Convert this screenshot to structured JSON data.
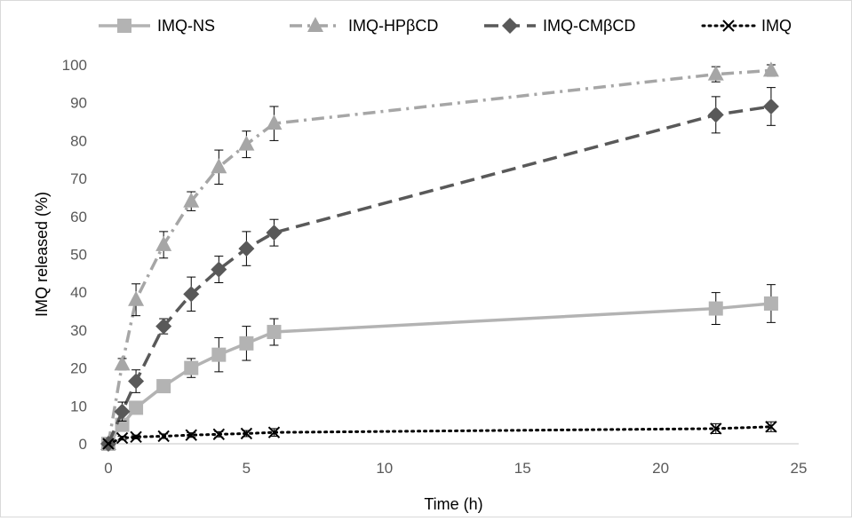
{
  "chart_data": {
    "type": "line",
    "title": "",
    "xlabel": "Time (h)",
    "ylabel": "IMQ released (%)",
    "xlim": [
      0,
      25
    ],
    "ylim": [
      0,
      100
    ],
    "x_ticks": [
      0,
      5,
      10,
      15,
      20,
      25
    ],
    "y_ticks": [
      0,
      10,
      20,
      30,
      40,
      50,
      60,
      70,
      80,
      90,
      100
    ],
    "grid": false,
    "legend_position": "top",
    "series": [
      {
        "name": "IMQ-NS",
        "color": "#b3b3b3",
        "marker": "square",
        "line_style": "solid",
        "x": [
          0,
          0.5,
          1,
          2,
          3,
          4,
          5,
          6,
          22,
          24
        ],
        "y": [
          0,
          5,
          9.5,
          15.2,
          20,
          23.5,
          26.5,
          29.5,
          35.7,
          37
        ],
        "error": [
          0,
          1,
          1.5,
          1.5,
          2.5,
          4.5,
          4.5,
          3.5,
          4.2,
          5
        ]
      },
      {
        "name": "IMQ-HPβCD",
        "color": "#a6a6a6",
        "marker": "triangle",
        "line_style": "dash-dot",
        "x": [
          0,
          0.5,
          1,
          2,
          3,
          4,
          5,
          6,
          22,
          24
        ],
        "y": [
          0,
          21,
          38,
          52.5,
          64,
          73,
          79,
          84.5,
          97.5,
          98.5
        ],
        "error": [
          0,
          1.5,
          4.2,
          3.5,
          2.5,
          4.5,
          3.5,
          4.5,
          2,
          1.5
        ]
      },
      {
        "name": "IMQ-CMβCD",
        "color": "#595959",
        "marker": "diamond",
        "line_style": "dashed",
        "x": [
          0,
          0.5,
          1,
          2,
          3,
          4,
          5,
          6,
          22,
          24
        ],
        "y": [
          0,
          8.5,
          16.5,
          31,
          39.5,
          46,
          51.5,
          55.7,
          86.8,
          89
        ],
        "error": [
          0,
          2.5,
          3,
          2,
          4.5,
          3.5,
          4.5,
          3.5,
          4.8,
          5
        ]
      },
      {
        "name": "IMQ",
        "color": "#000000",
        "marker": "x",
        "line_style": "dotted",
        "x": [
          0,
          0.5,
          1,
          2,
          3,
          4,
          5,
          6,
          22,
          24
        ],
        "y": [
          0,
          1.5,
          1.8,
          2,
          2.3,
          2.5,
          2.7,
          3,
          4,
          4.5
        ],
        "error": [
          0,
          0.5,
          0.5,
          0.6,
          0.6,
          0.7,
          0.8,
          1,
          1.3,
          1.3
        ]
      }
    ]
  }
}
